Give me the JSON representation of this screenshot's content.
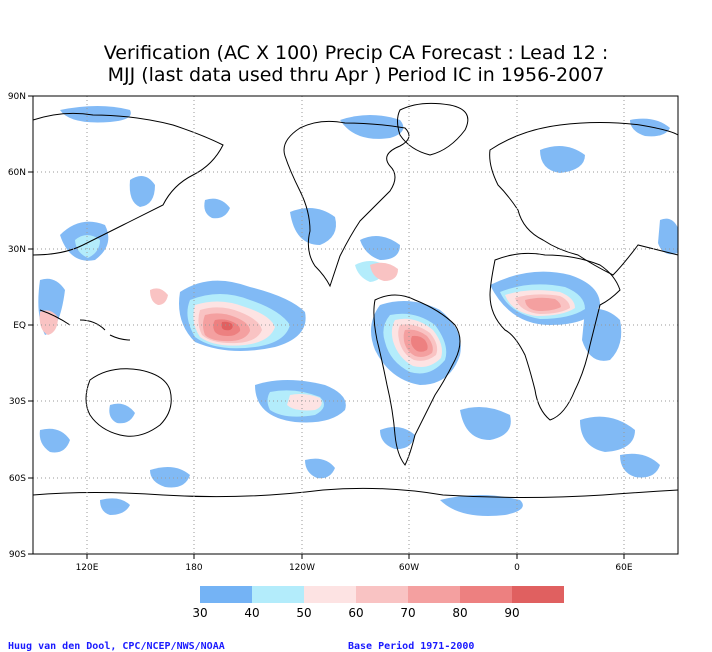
{
  "title": {
    "line1": "Verification (AC X 100) Precip CA Forecast : Lead 12 :",
    "line2": "MJJ (last data used thru Apr ) Period IC in 1956-2007"
  },
  "map": {
    "lat_labels": [
      "90N",
      "60N",
      "30N",
      "EQ",
      "30S",
      "60S",
      "90S"
    ],
    "lon_labels": [
      "120E",
      "180",
      "120W",
      "60W",
      "0",
      "60E"
    ],
    "gridlines": "dotted"
  },
  "legend": {
    "values": [
      "30",
      "40",
      "50",
      "60",
      "70",
      "80",
      "90"
    ],
    "colors": [
      "#74b3f5",
      "#b3ecfb",
      "#fde3e3",
      "#f9c3c3",
      "#f4a0a0",
      "#ed8080",
      "#e06060",
      "#e06060"
    ]
  },
  "footer": {
    "credit": "Huug van den Dool, CPC/NCEP/NWS/NOAA",
    "base_period": "Base Period 1971-2000"
  }
}
